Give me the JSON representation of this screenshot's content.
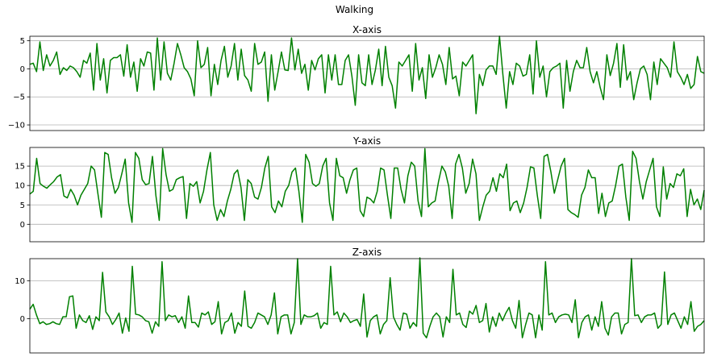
{
  "figure": {
    "suptitle": "Walking"
  },
  "colors": {
    "line": "#008000",
    "grid": "#b0b0b0",
    "axes": "#000000"
  },
  "chart_data": [
    {
      "type": "line",
      "title": "X-axis",
      "xlabel": "",
      "ylabel": "",
      "ylim": [
        -11,
        5.8
      ],
      "yticks": [
        -10,
        -5,
        0,
        5
      ],
      "ytick_labels": [
        "−10",
        "−5",
        "0",
        "5"
      ],
      "grid": "y",
      "series": [
        {
          "values": [
            0.8,
            1.0,
            -0.5,
            4.8,
            -0.3,
            2.5,
            0.5,
            1.5,
            3.0,
            -1.0,
            0.2,
            -0.3,
            0.5,
            0.2,
            -0.5,
            -1.5,
            1.5,
            1.0,
            2.8,
            -3.8,
            4.5,
            -2.0,
            1.8,
            -4.3,
            1.5,
            2.0,
            2.0,
            2.5,
            -1.3,
            4.3,
            -1.5,
            1.2,
            -4.0,
            1.8,
            0.5,
            3.0,
            2.8,
            -3.8,
            5.5,
            -2.0,
            4.8,
            -0.8,
            -2.0,
            1.0,
            4.5,
            2.5,
            0.2,
            -0.5,
            -1.8,
            -4.8,
            5.0,
            0.2,
            0.8,
            3.8,
            -4.8,
            0.8,
            -2.8,
            1.5,
            4.0,
            -1.5,
            0.5,
            4.5,
            -2.0,
            3.5,
            -1.2,
            -2.0,
            -4.0,
            4.5,
            0.8,
            1.2,
            3.0,
            -5.8,
            2.5,
            -3.8,
            -0.5,
            3.0,
            -0.2,
            -0.3,
            5.5,
            -0.2,
            3.5,
            -0.8,
            0.8,
            -3.8,
            1.5,
            -0.2,
            1.8,
            2.5,
            -4.3,
            2.5,
            -2.0,
            2.5,
            -2.8,
            -2.8,
            1.5,
            2.5,
            -1.3,
            -6.5,
            2.5,
            -2.5,
            -3.0,
            2.5,
            -2.8,
            -0.2,
            3.5,
            -3.0,
            4.0,
            -1.5,
            -3.0,
            -7.0,
            1.2,
            0.5,
            1.5,
            2.5,
            -4.0,
            4.5,
            -2.0,
            0.2,
            -5.3,
            2.5,
            -1.5,
            0.2,
            2.5,
            0.8,
            -2.8,
            3.8,
            -1.8,
            -1.3,
            -4.8,
            1.2,
            0.5,
            1.5,
            2.5,
            -8.0,
            -1.0,
            -3.0,
            -0.2,
            0.5,
            0.5,
            -1.0,
            5.8,
            -1.0,
            -7.0,
            -0.5,
            -2.8,
            1.0,
            0.5,
            -1.3,
            -1.0,
            2.5,
            -4.5,
            5.0,
            -1.5,
            0.5,
            -5.0,
            -0.5,
            0.2,
            0.5,
            1.0,
            -7.0,
            1.5,
            -4.0,
            -0.5,
            1.5,
            0.2,
            0.2,
            3.8,
            -0.5,
            -2.5,
            -0.5,
            -3.3,
            -5.5,
            2.5,
            -1.2,
            1.0,
            4.5,
            -3.3,
            4.3,
            -2.0,
            -0.5,
            -5.5,
            -2.5,
            0.0,
            0.5,
            -1.0,
            -5.5,
            1.2,
            -2.8,
            1.8,
            1.0,
            0.2,
            -1.5,
            4.8,
            -0.5,
            -1.5,
            -2.8,
            -1.0,
            -3.5,
            -2.8,
            2.2,
            -0.5,
            -0.8
          ]
        }
      ]
    },
    {
      "type": "line",
      "title": "Y-axis",
      "xlabel": "",
      "ylabel": "",
      "ylim": [
        -4.5,
        19.8
      ],
      "yticks": [
        0,
        5,
        10,
        15
      ],
      "ytick_labels": [
        "0",
        "5",
        "10",
        "15"
      ],
      "grid": "y",
      "series": [
        {
          "values": [
            7.8,
            8.5,
            17.0,
            10.5,
            9.8,
            9.3,
            10.2,
            11.0,
            12.2,
            12.8,
            7.3,
            6.8,
            9.0,
            7.5,
            5.0,
            7.5,
            9.0,
            10.5,
            15.0,
            14.0,
            7.8,
            1.8,
            18.5,
            18.0,
            12.0,
            8.0,
            9.5,
            13.0,
            16.8,
            5.5,
            0.5,
            18.5,
            17.0,
            11.5,
            10.2,
            10.5,
            17.5,
            7.5,
            1.0,
            19.5,
            12.8,
            8.5,
            9.0,
            11.5,
            12.0,
            12.3,
            1.5,
            10.5,
            9.8,
            11.0,
            5.5,
            8.5,
            14.0,
            18.5,
            5.0,
            1.0,
            3.8,
            2.0,
            6.0,
            9.0,
            13.0,
            14.0,
            9.5,
            1.0,
            11.5,
            10.5,
            7.0,
            6.5,
            9.5,
            14.5,
            17.5,
            4.5,
            3.0,
            6.0,
            4.5,
            8.5,
            10.0,
            13.5,
            14.5,
            8.5,
            0.5,
            18.0,
            16.0,
            10.5,
            9.8,
            10.5,
            15.0,
            17.0,
            5.5,
            1.0,
            17.0,
            12.5,
            12.0,
            8.0,
            11.5,
            14.0,
            14.5,
            3.5,
            2.0,
            7.0,
            6.5,
            5.5,
            8.5,
            14.5,
            14.0,
            7.5,
            1.5,
            14.5,
            14.5,
            9.0,
            5.5,
            12.5,
            16.0,
            15.0,
            6.0,
            2.0,
            19.5,
            4.5,
            5.5,
            6.0,
            11.0,
            15.0,
            13.5,
            9.8,
            1.5,
            15.5,
            18.0,
            14.5,
            8.0,
            10.5,
            16.8,
            13.0,
            1.0,
            4.5,
            7.5,
            8.5,
            12.0,
            8.5,
            13.0,
            12.0,
            15.5,
            3.5,
            5.5,
            6.0,
            3.0,
            5.5,
            9.5,
            14.8,
            14.5,
            7.5,
            1.5,
            17.5,
            18.0,
            13.5,
            8.0,
            11.5,
            15.0,
            17.0,
            3.8,
            3.0,
            2.5,
            1.8,
            7.5,
            9.5,
            14.0,
            12.0,
            12.0,
            2.8,
            8.0,
            2.0,
            5.5,
            6.0,
            10.0,
            15.0,
            15.5,
            7.0,
            1.0,
            18.8,
            17.0,
            11.0,
            6.5,
            11.0,
            14.0,
            17.0,
            4.5,
            2.0,
            14.8,
            6.5,
            10.5,
            9.5,
            13.0,
            12.5,
            14.3,
            2.0,
            9.0,
            5.0,
            6.5,
            3.8,
            8.8
          ]
        }
      ]
    },
    {
      "type": "line",
      "title": "Z-axis",
      "xlabel": "",
      "ylabel": "",
      "ylim": [
        -9,
        15.8
      ],
      "yticks": [
        0,
        10
      ],
      "ytick_labels": [
        "0",
        "10"
      ],
      "grid": "y",
      "series": [
        {
          "values": [
            2.5,
            3.8,
            1.0,
            -1.3,
            -0.8,
            -1.5,
            -1.3,
            -0.8,
            -1.3,
            -1.5,
            0.5,
            0.5,
            5.8,
            6.0,
            -2.5,
            1.0,
            -0.5,
            -1.0,
            0.8,
            -2.8,
            0.5,
            -0.5,
            12.2,
            1.8,
            0.5,
            -1.5,
            -0.2,
            1.5,
            -3.8,
            0.2,
            -3.3,
            13.8,
            1.2,
            1.0,
            0.5,
            -0.5,
            -0.8,
            -3.8,
            -0.8,
            -2.0,
            15.0,
            -0.5,
            1.0,
            0.5,
            0.8,
            -1.0,
            0.5,
            -2.5,
            6.0,
            -1.0,
            -1.0,
            -2.2,
            1.5,
            1.0,
            1.8,
            -1.5,
            -0.8,
            4.5,
            -4.0,
            -1.0,
            -0.5,
            1.5,
            -3.8,
            -1.0,
            -2.0,
            7.3,
            -2.0,
            -2.5,
            -1.0,
            1.5,
            1.0,
            0.5,
            -1.5,
            1.0,
            6.8,
            -4.0,
            0.5,
            1.0,
            1.0,
            -4.0,
            -1.0,
            15.8,
            -1.5,
            1.0,
            0.5,
            0.5,
            0.8,
            1.5,
            -2.5,
            -1.0,
            -1.5,
            13.8,
            1.0,
            1.8,
            -0.8,
            1.5,
            0.5,
            -1.0,
            -0.5,
            -0.2,
            -2.0,
            6.5,
            -4.8,
            -0.5,
            0.5,
            1.0,
            -4.0,
            -1.5,
            -0.5,
            10.8,
            0.5,
            -1.5,
            -3.0,
            1.5,
            1.2,
            -2.5,
            -1.0,
            -2.0,
            16.0,
            -3.8,
            -5.0,
            -2.0,
            0.5,
            1.5,
            0.5,
            -4.8,
            0.5,
            -1.0,
            13.0,
            1.0,
            1.5,
            -1.5,
            -2.3,
            2.0,
            1.2,
            3.5,
            -1.0,
            -0.5,
            4.0,
            -3.5,
            0.5,
            -2.0,
            1.5,
            -0.5,
            1.5,
            3.0,
            -0.5,
            -2.5,
            4.8,
            -5.0,
            -1.5,
            1.5,
            1.0,
            -5.0,
            1.0,
            -3.0,
            15.0,
            1.0,
            1.5,
            -1.0,
            0.5,
            1.0,
            1.2,
            1.0,
            -1.0,
            5.0,
            -5.0,
            -1.0,
            0.5,
            1.0,
            -3.0,
            0.5,
            -2.0,
            4.5,
            -2.5,
            -4.3,
            0.5,
            1.5,
            1.5,
            -4.0,
            -1.5,
            -1.0,
            15.8,
            0.8,
            1.0,
            -1.0,
            0.5,
            1.0,
            1.0,
            1.5,
            -2.5,
            -1.5,
            12.3,
            -1.5,
            1.0,
            1.5,
            -0.5,
            -2.5,
            0.5,
            -1.5,
            4.5,
            -3.3,
            -2.0,
            -1.5,
            -0.5
          ]
        }
      ]
    }
  ]
}
